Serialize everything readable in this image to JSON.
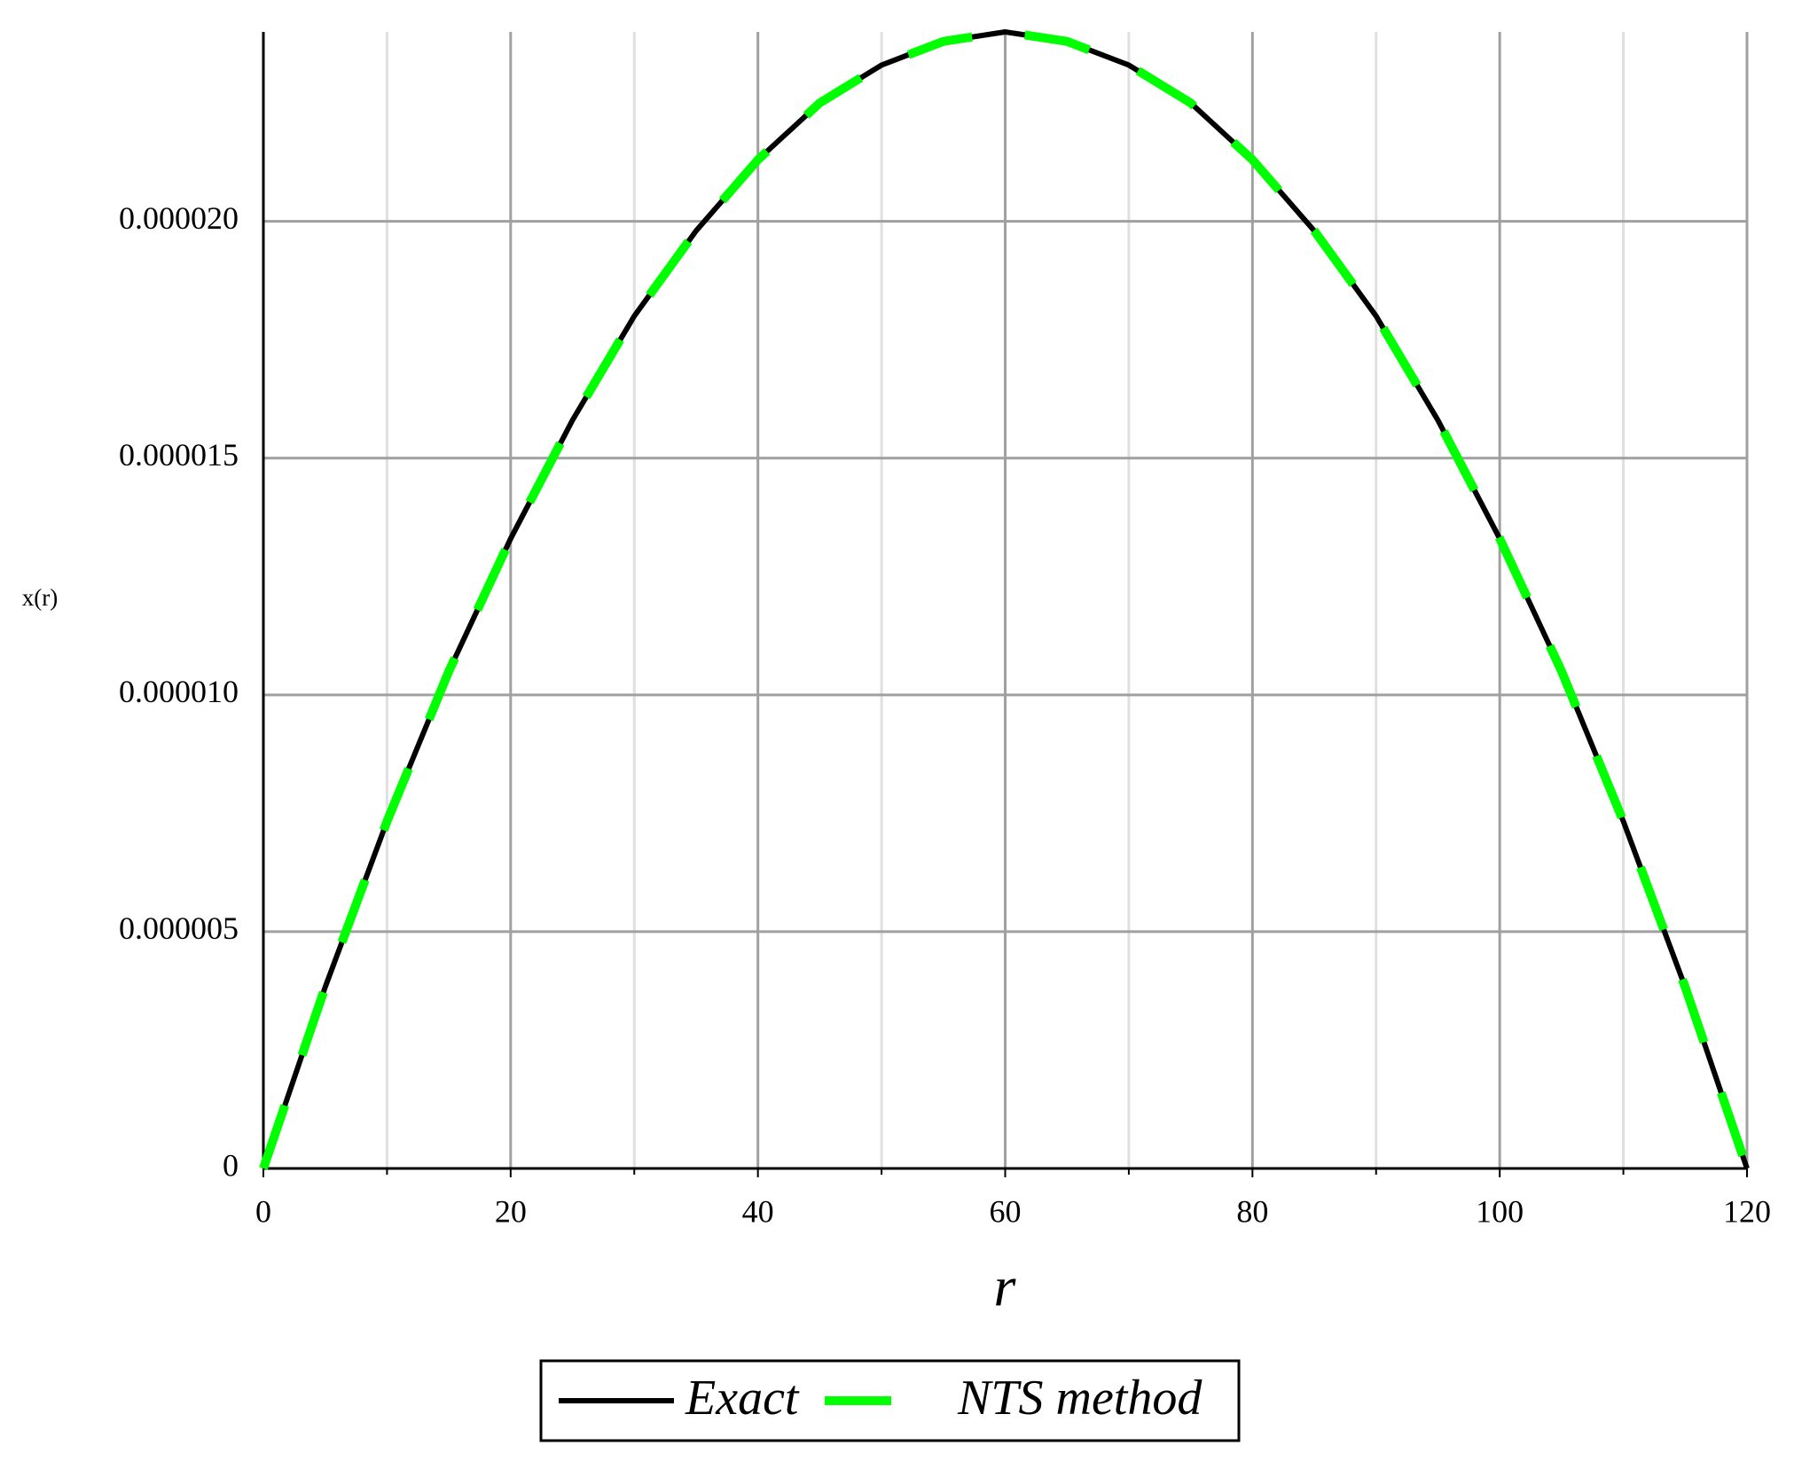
{
  "chart_data": {
    "type": "line",
    "x_label": "r",
    "y_label": "x(r)",
    "x": [
      0,
      5,
      10,
      15,
      20,
      25,
      30,
      35,
      40,
      45,
      50,
      55,
      60,
      65,
      70,
      75,
      80,
      85,
      90,
      95,
      100,
      105,
      110,
      115,
      120
    ],
    "series": [
      {
        "name": "Exact",
        "color": "#000000",
        "dashed": false,
        "values": [
          0,
          3.83e-06,
          7.33e-06,
          1.05e-05,
          1.33e-05,
          1.58e-05,
          1.8e-05,
          1.98e-05,
          2.13e-05,
          2.25e-05,
          2.33e-05,
          2.38e-05,
          2.4e-05,
          2.38e-05,
          2.33e-05,
          2.25e-05,
          2.13e-05,
          1.98e-05,
          1.8e-05,
          1.58e-05,
          1.33e-05,
          1.05e-05,
          7.33e-06,
          3.83e-06,
          0
        ]
      },
      {
        "name": "NTS method",
        "color": "#00ff00",
        "dashed": true,
        "values": [
          0,
          3.83e-06,
          7.33e-06,
          1.05e-05,
          1.33e-05,
          1.58e-05,
          1.8e-05,
          1.98e-05,
          2.13e-05,
          2.25e-05,
          2.33e-05,
          2.38e-05,
          2.4e-05,
          2.38e-05,
          2.33e-05,
          2.25e-05,
          2.13e-05,
          1.98e-05,
          1.8e-05,
          1.58e-05,
          1.33e-05,
          1.05e-05,
          7.33e-06,
          3.83e-06,
          0
        ]
      }
    ],
    "xlim": [
      0,
      120
    ],
    "xticks": [
      0,
      20,
      40,
      60,
      80,
      100,
      120
    ],
    "xminorticks": [
      10,
      30,
      50,
      70,
      90,
      110
    ],
    "ylim": [
      0,
      2.4e-05
    ],
    "yticks": [
      0,
      {
        "value": 5e-06,
        "label": "0.000005"
      },
      {
        "value": 1e-05,
        "label": "0.000010"
      },
      {
        "value": 1.5e-05,
        "label": "0.000015"
      },
      {
        "value": 2e-05,
        "label": "0.000020"
      }
    ],
    "grid": true,
    "legend": "bottom"
  }
}
